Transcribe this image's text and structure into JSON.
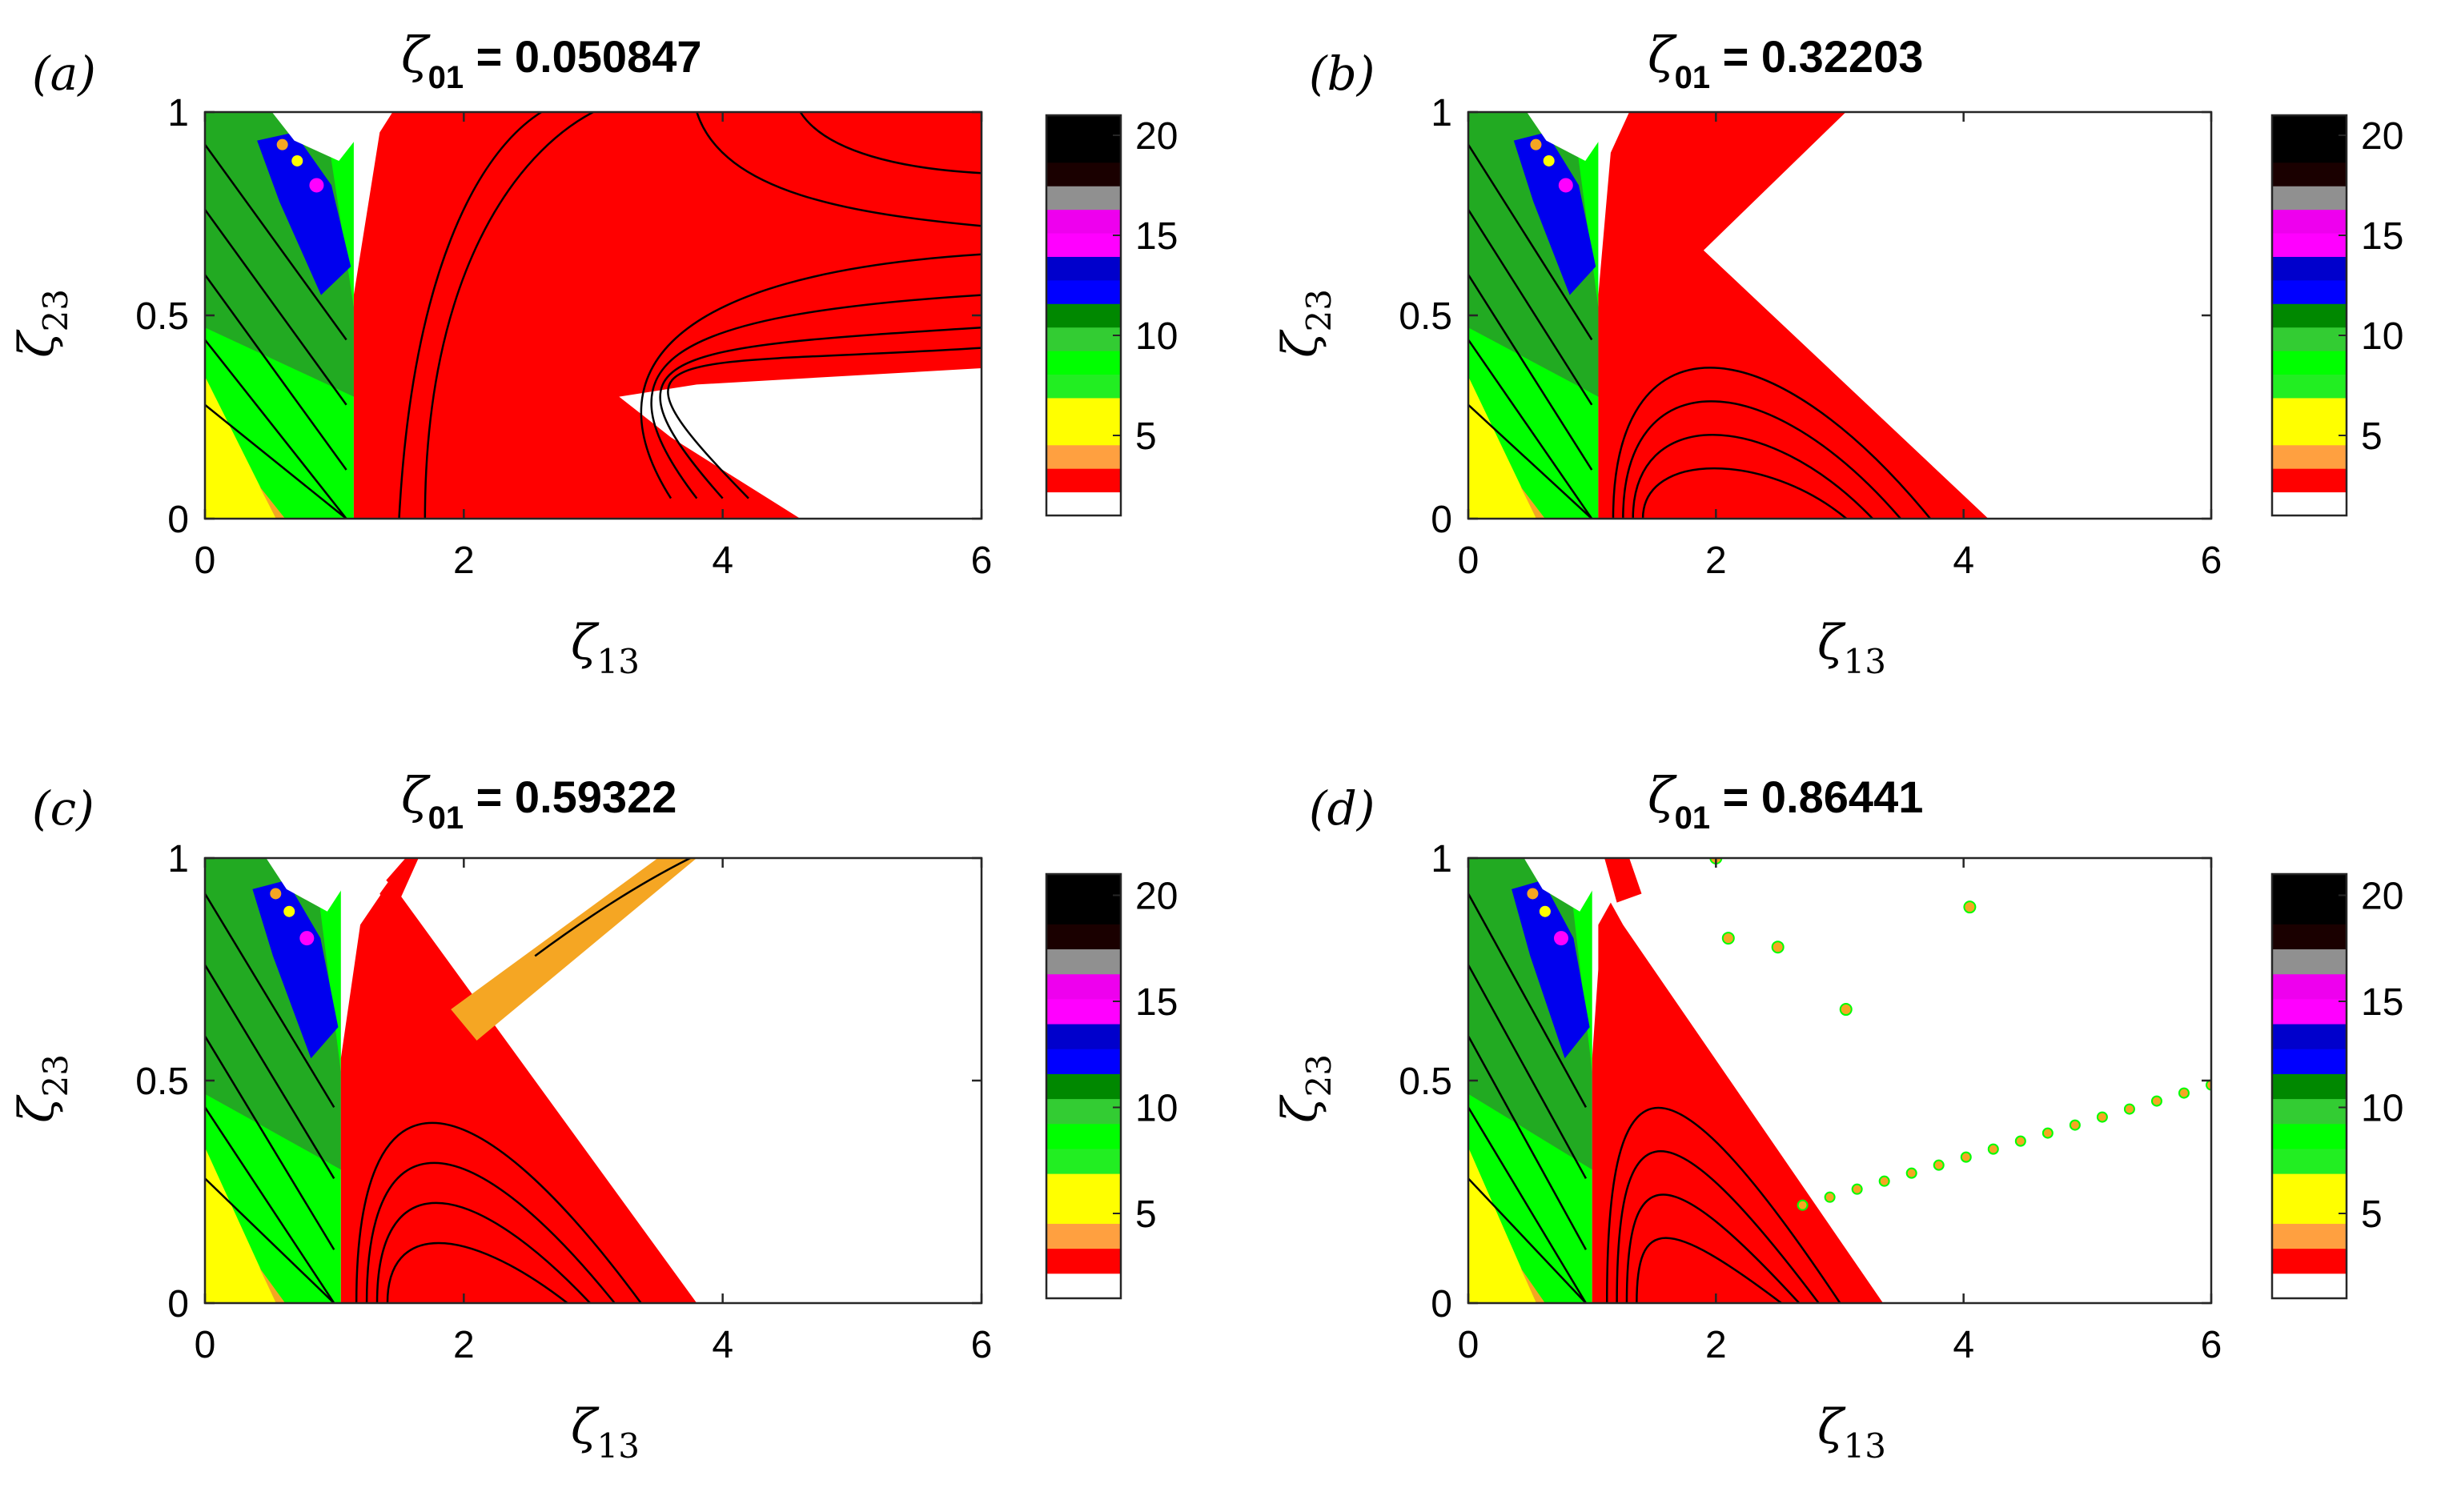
{
  "chart_data": [
    {
      "type": "heatmap",
      "panel_label": "(a)",
      "title_symbol": "ζ",
      "title_subscript": "01",
      "title_value": " = 0.050847",
      "xlabel_symbol": "ζ",
      "xlabel_subscript": "13",
      "ylabel_symbol": "ζ",
      "ylabel_subscript": "23",
      "xlim": [
        0,
        6
      ],
      "ylim": [
        0,
        1
      ],
      "xticks": [
        0,
        2,
        4,
        6
      ],
      "xtick_labels": [
        "0",
        "2",
        "4",
        "6"
      ],
      "yticks": [
        0,
        0.5,
        1
      ],
      "ytick_labels": [
        "0",
        "0.5",
        "1"
      ],
      "colorbar": {
        "range": [
          1,
          21
        ],
        "ticks": [
          5,
          10,
          15,
          20
        ],
        "tick_labels": [
          "5",
          "10",
          "15",
          "20"
        ]
      },
      "red_region_right_boundary": [
        [
          6,
          0.37
        ],
        [
          3.2,
          0.3
        ],
        [
          4.6,
          0
        ]
      ],
      "red_region_left_boundary_x": 1.15
    },
    {
      "type": "heatmap",
      "panel_label": "(b)",
      "title_symbol": "ζ",
      "title_subscript": "01",
      "title_value": " = 0.32203",
      "xlabel_symbol": "ζ",
      "xlabel_subscript": "13",
      "ylabel_symbol": "ζ",
      "ylabel_subscript": "23",
      "xlim": [
        0,
        6
      ],
      "ylim": [
        0,
        1
      ],
      "xticks": [
        0,
        2,
        4,
        6
      ],
      "xtick_labels": [
        "0",
        "2",
        "4",
        "6"
      ],
      "yticks": [
        0,
        0.5,
        1
      ],
      "ytick_labels": [
        "0",
        "0.5",
        "1"
      ],
      "colorbar": {
        "range": [
          1,
          21
        ],
        "ticks": [
          5,
          10,
          15,
          20
        ],
        "tick_labels": [
          "5",
          "10",
          "15",
          "20"
        ]
      },
      "red_region_right_boundary": [
        [
          3.05,
          1
        ],
        [
          1.9,
          0.66
        ],
        [
          4.2,
          0
        ]
      ],
      "red_region_left_boundary_x": 1.05
    },
    {
      "type": "heatmap",
      "panel_label": "(c)",
      "title_symbol": "ζ",
      "title_subscript": "01",
      "title_value": " = 0.59322",
      "xlabel_symbol": "ζ",
      "xlabel_subscript": "13",
      "ylabel_symbol": "ζ",
      "ylabel_subscript": "23",
      "xlim": [
        0,
        6
      ],
      "ylim": [
        0,
        1
      ],
      "xticks": [
        0,
        2,
        4,
        6
      ],
      "xtick_labels": [
        "0",
        "2",
        "4",
        "6"
      ],
      "yticks": [
        0,
        0.5,
        1
      ],
      "ytick_labels": [
        "0",
        "0.5",
        "1"
      ],
      "colorbar": {
        "range": [
          1,
          21
        ],
        "ticks": [
          5,
          10,
          15,
          20
        ],
        "tick_labels": [
          "5",
          "10",
          "15",
          "20"
        ]
      },
      "red_region_right_boundary": [
        [
          1.4,
          0.95
        ],
        [
          3.8,
          0
        ]
      ],
      "red_region_left_boundary_x": 1.05,
      "orange_band": [
        [
          1.9,
          0.66
        ],
        [
          2.1,
          0.59
        ],
        [
          3.8,
          1
        ],
        [
          3.5,
          1
        ]
      ]
    },
    {
      "type": "heatmap",
      "panel_label": "(d)",
      "title_symbol": "ζ",
      "title_subscript": "01",
      "title_value": " = 0.86441",
      "xlabel_symbol": "ζ",
      "xlabel_subscript": "13",
      "ylabel_symbol": "ζ",
      "ylabel_subscript": "23",
      "xlim": [
        0,
        6
      ],
      "ylim": [
        0,
        1
      ],
      "xticks": [
        0,
        2,
        4,
        6
      ],
      "xtick_labels": [
        "0",
        "2",
        "4",
        "6"
      ],
      "yticks": [
        0,
        0.5,
        1
      ],
      "ytick_labels": [
        "0",
        "0.5",
        "1"
      ],
      "colorbar": {
        "range": [
          1,
          21
        ],
        "ticks": [
          5,
          10,
          15,
          20
        ],
        "tick_labels": [
          "5",
          "10",
          "15",
          "20"
        ]
      },
      "red_region_right_boundary": [
        [
          1.2,
          0.82
        ],
        [
          3.35,
          0
        ]
      ],
      "red_region_left_boundary_x": 1.0,
      "dotted_line": [
        [
          2.7,
          0.22
        ],
        [
          6,
          0.49
        ]
      ],
      "isolated_points": [
        [
          4.05,
          0.89
        ],
        [
          3.05,
          0.66
        ],
        [
          2.0,
          1.0
        ],
        [
          2.5,
          0.8
        ],
        [
          2.1,
          0.82
        ]
      ]
    }
  ],
  "colors": {
    "level_colors": [
      "#ffffff",
      "#ff0000",
      "#ffa040",
      "#ffff00",
      "#ffff00",
      "#22ee22",
      "#00ff00",
      "#33cc33",
      "#008800",
      "#0000ff",
      "#0000cc",
      "#ff00ff",
      "#ee00ee",
      "#909090",
      "#1a0000",
      "#000000",
      "#000000"
    ],
    "white": "#ffffff",
    "red": "#ff0000",
    "orange": "#f5a623",
    "yellow": "#ffff00",
    "green": "#00ff00",
    "dark_green": "#22aa22",
    "blue": "#0000ee",
    "magenta": "#ff00ff",
    "gray": "#909090",
    "black": "#000000",
    "contour": "#000000"
  }
}
